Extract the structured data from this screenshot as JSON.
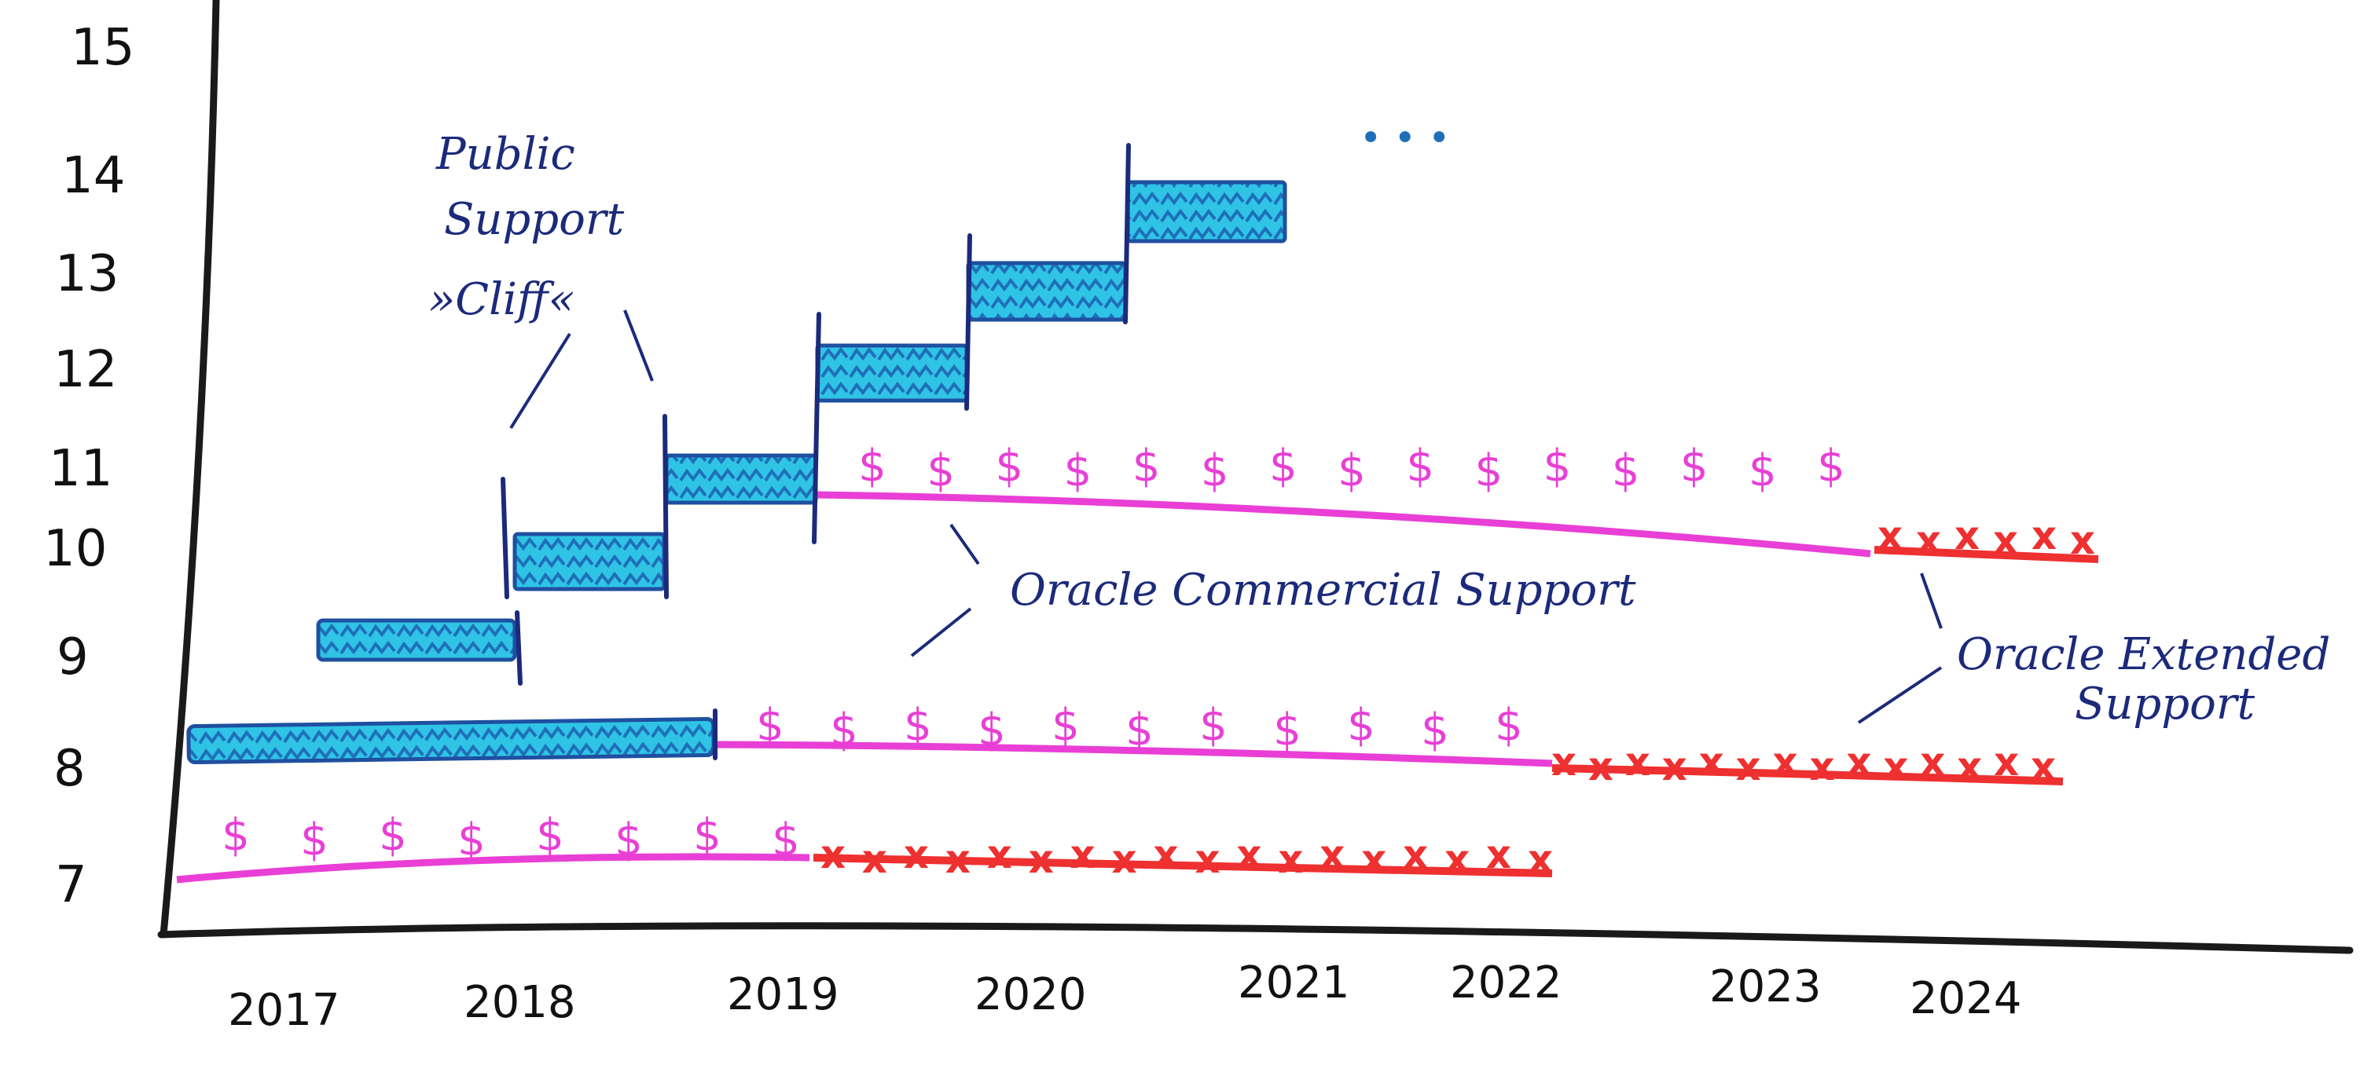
{
  "y_axis": {
    "labels": [
      "15",
      "14",
      "13",
      "12",
      "11",
      "10",
      "9",
      "8",
      "7"
    ]
  },
  "x_axis": {
    "labels": [
      "2017",
      "2018",
      "2019",
      "2020",
      "2021",
      "2022",
      "2023",
      "2024"
    ]
  },
  "annotations": {
    "public_support_cliff": [
      "Public",
      "Support",
      "»Cliff«"
    ],
    "oracle_commercial_support": "Oracle Commercial Support",
    "oracle_extended_support": [
      "Oracle Extended",
      "Support"
    ],
    "ellipsis": "• • •"
  },
  "legend_colors": {
    "public_support": "#2fc4e6",
    "public_support_border": "#1f4fa0",
    "commercial_support": "#e93fd6",
    "extended_support": "#ee3030",
    "axis": "#1a1a1a",
    "handwriting": "#1b2a7a"
  },
  "symbols": {
    "commercial_marker": "$",
    "extended_marker": "x"
  },
  "chart_data": {
    "type": "timeline",
    "versions": [
      {
        "version": "7",
        "commercial": [
          "2017",
          "2019"
        ],
        "extended": [
          "2019",
          "2022"
        ]
      },
      {
        "version": "8",
        "public": [
          "2017",
          "2019"
        ],
        "commercial": [
          "2019",
          "2022"
        ],
        "extended": [
          "2022",
          "2024"
        ]
      },
      {
        "version": "9",
        "public": [
          "2017.5",
          "2018"
        ]
      },
      {
        "version": "10",
        "public": [
          "2018",
          "2018.5"
        ]
      },
      {
        "version": "11",
        "public": [
          "2018.5",
          "2019"
        ],
        "commercial": [
          "2019",
          "2023.5"
        ],
        "extended": [
          "2023.5",
          "2024.5"
        ]
      },
      {
        "version": "12",
        "public": [
          "2019",
          "2019.5"
        ]
      },
      {
        "version": "13",
        "public": [
          "2019.5",
          "2020"
        ]
      },
      {
        "version": "14",
        "public": [
          "2020",
          "2020.5"
        ]
      }
    ]
  }
}
